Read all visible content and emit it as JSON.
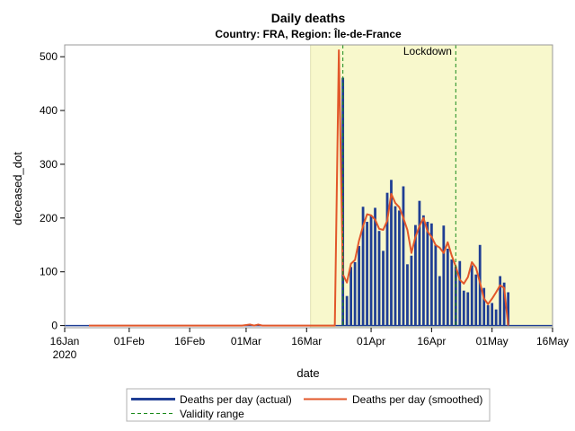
{
  "chart_data": {
    "type": "bar",
    "title": "Daily deaths",
    "subtitle": "Country: FRA, Region: Île-de-France",
    "xlabel": "date",
    "ylabel": "deceased_dot",
    "x_start": "2020-01-16",
    "xlim_days": [
      0,
      121
    ],
    "ylim": [
      -4,
      522
    ],
    "yticks": [
      0,
      100,
      200,
      300,
      400,
      500
    ],
    "ytick_labels": [
      "0",
      "100",
      "200",
      "300",
      "400",
      "500"
    ],
    "xticks_days": [
      0,
      16,
      31,
      45,
      60,
      76,
      91,
      106,
      121
    ],
    "xtick_labels": [
      "16Jan",
      "01Feb",
      "16Feb",
      "01Mar",
      "16Mar",
      "01Apr",
      "16Apr",
      "01May",
      "16May"
    ],
    "xtick_year": "2020",
    "annotation": {
      "text": "Lockdown",
      "start_day": 61,
      "end_day": 121,
      "color": "#f8f8cc"
    },
    "validity_range_days": [
      69,
      97
    ],
    "bar_start_day": 69,
    "actual": [
      461,
      55,
      109,
      118,
      148,
      221,
      193,
      205,
      219,
      176,
      139,
      247,
      271,
      222,
      214,
      259,
      114,
      130,
      187,
      232,
      205,
      193,
      190,
      150,
      92,
      186,
      143,
      123,
      110,
      120,
      65,
      62,
      112,
      95,
      150,
      70,
      38,
      42,
      30,
      92,
      80,
      62
    ],
    "smoothed_days": [
      6,
      44,
      46,
      47,
      48,
      49,
      61,
      67,
      68,
      69,
      70,
      71,
      72,
      73,
      74,
      75,
      76,
      77,
      78,
      79,
      80,
      81,
      82,
      83,
      84,
      85,
      86,
      87,
      88,
      89,
      90,
      91,
      92,
      93,
      94,
      95,
      96,
      97,
      98,
      99,
      100,
      101,
      102,
      103,
      104,
      105,
      106,
      107,
      108,
      109,
      110
    ],
    "smoothed": [
      0,
      0,
      2,
      0,
      2,
      0,
      0,
      0,
      512,
      95,
      80,
      115,
      122,
      158,
      185,
      207,
      205,
      197,
      180,
      178,
      195,
      245,
      228,
      220,
      200,
      178,
      135,
      165,
      185,
      200,
      175,
      165,
      150,
      145,
      135,
      155,
      130,
      110,
      85,
      78,
      90,
      118,
      108,
      80,
      50,
      40,
      50,
      62,
      75,
      70,
      0
    ],
    "series": [
      {
        "name": "Deaths per day (actual)",
        "color": "#1f3e94"
      },
      {
        "name": "Deaths per day (smoothed)",
        "color": "#e2572a"
      },
      {
        "name": "Validity range",
        "color": "#1a8a1a"
      }
    ]
  }
}
